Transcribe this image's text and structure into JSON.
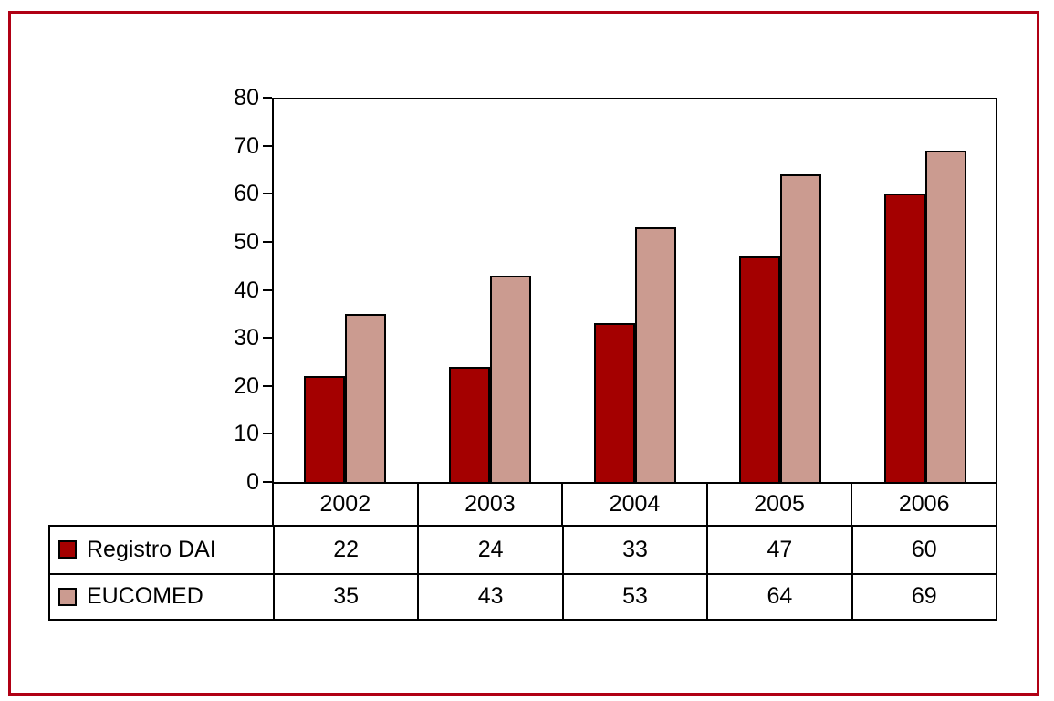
{
  "frame": {
    "border_color": "#B00014"
  },
  "chart_data": {
    "type": "bar",
    "title": "",
    "xlabel": "",
    "ylabel": "",
    "categories": [
      "2002",
      "2003",
      "2004",
      "2005",
      "2006"
    ],
    "series": [
      {
        "name": "Registro DAI",
        "color": "#A40000",
        "values": [
          22,
          24,
          33,
          47,
          60
        ]
      },
      {
        "name": "EUCOMED",
        "color": "#CB9B90",
        "values": [
          35,
          43,
          53,
          64,
          69
        ]
      }
    ],
    "ylim": [
      0,
      80
    ],
    "yticks": [
      0,
      10,
      20,
      30,
      40,
      50,
      60,
      70,
      80
    ],
    "grid": false,
    "legend_position": "table-below",
    "bar_border_color": "#000000",
    "axis_color": "#000000"
  }
}
